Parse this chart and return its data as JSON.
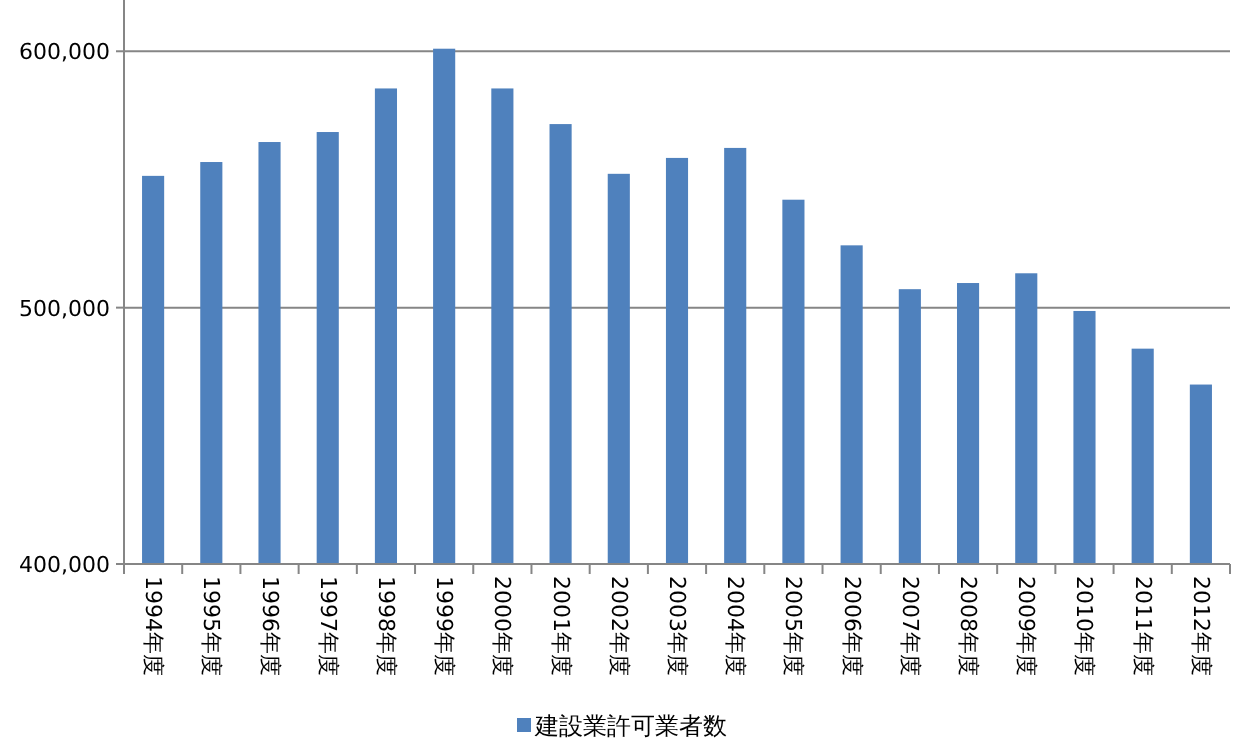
{
  "chart_data": {
    "type": "bar",
    "categories": [
      "1994年度",
      "1995年度",
      "1996年度",
      "1997年度",
      "1998年度",
      "1999年度",
      "2000年度",
      "2001年度",
      "2002年度",
      "2003年度",
      "2004年度",
      "2005年度",
      "2006年度",
      "2007年度",
      "2008年度",
      "2009年度",
      "2010年度",
      "2011年度",
      "2012年度"
    ],
    "series": [
      {
        "name": "建設業許可業者数",
        "color": "#4f81bd",
        "values": [
          551400,
          556800,
          564600,
          568500,
          585500,
          601000,
          585500,
          571600,
          552200,
          558400,
          562300,
          542100,
          524300,
          507200,
          509600,
          513400,
          498700,
          484000,
          470000
        ]
      }
    ],
    "ylim": [
      400000,
      620000
    ],
    "yticks": [
      {
        "value": 400000,
        "label": "400,000"
      },
      {
        "value": 500000,
        "label": "500,000"
      },
      {
        "value": 600000,
        "label": "600,000"
      }
    ],
    "grid": "y",
    "legend": "bottom"
  }
}
